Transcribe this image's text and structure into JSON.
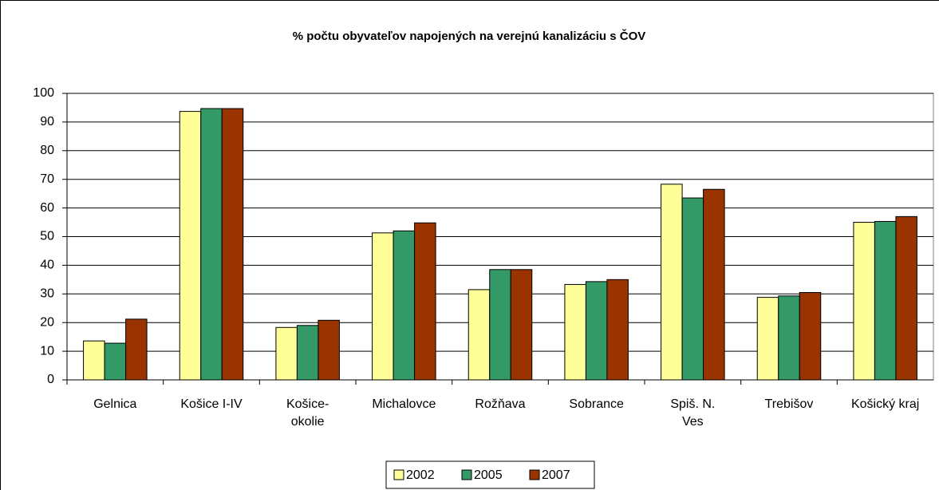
{
  "chart_data": {
    "type": "bar",
    "title": "% počtu obyvateľov napojených na verejnú kanalizáciu s ČOV",
    "categories": [
      "Gelnica",
      "Košice I-IV",
      "Košice-\nokolie",
      "Michalovce",
      "Rožňava",
      "Sobrance",
      "Spiš. N.\nVes",
      "Trebišov",
      "Košický kraj"
    ],
    "series": [
      {
        "name": "2002",
        "color": "#ffff99",
        "values": [
          13.6,
          93.7,
          18.3,
          51.3,
          31.5,
          33.3,
          68.3,
          28.8,
          55
        ]
      },
      {
        "name": "2005",
        "color": "#339966",
        "values": [
          12.8,
          94.7,
          19,
          52,
          38.5,
          34.3,
          63.5,
          29.3,
          55.3
        ]
      },
      {
        "name": "2007",
        "color": "#993300",
        "values": [
          21.2,
          94.7,
          20.8,
          54.8,
          38.5,
          35,
          66.5,
          30.5,
          57
        ]
      }
    ],
    "ylim": [
      0,
      100
    ],
    "yticks": [
      0,
      10,
      20,
      30,
      40,
      50,
      60,
      70,
      80,
      90,
      100
    ],
    "grid": true,
    "legend": "bottom"
  }
}
